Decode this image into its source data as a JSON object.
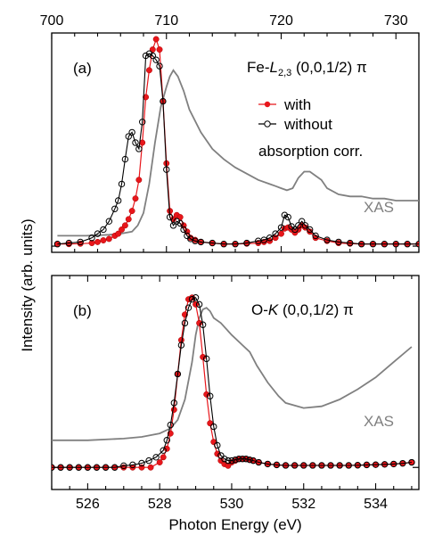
{
  "colors": {
    "with": "#e8161b",
    "without": "#000000",
    "xas": "#808080"
  },
  "ylabel": "Intensity (arb. units)",
  "chart_data": [
    {
      "type": "line",
      "panel_label": "(a)",
      "title_main": "Fe-",
      "title_italic": "L",
      "title_sub": "2,3",
      "title_rest": " (0,0,1/2) π",
      "x_axis_position": "top",
      "xlim": [
        700,
        732
      ],
      "xticks": [
        700,
        710,
        720,
        730
      ],
      "xtick_labels": [
        "700",
        "710",
        "720",
        "730"
      ],
      "ylim": [
        -0.03,
        1.03
      ],
      "grid": false,
      "legend_placement": "top-right",
      "legend": [
        "with",
        "without",
        "absorption corr."
      ],
      "annotation": "XAS",
      "series": [
        {
          "name": "with",
          "x": [
            700.5,
            701.5,
            702.5,
            703.5,
            704.0,
            704.5,
            705.0,
            705.5,
            705.8,
            706.1,
            706.4,
            706.7,
            707.0,
            707.3,
            707.6,
            707.9,
            708.2,
            708.5,
            708.8,
            709.1,
            709.4,
            709.7,
            710.0,
            710.3,
            710.6,
            710.9,
            711.2,
            711.5,
            711.8,
            712.1,
            712.5,
            713.0,
            714.0,
            715.0,
            716.0,
            717.0,
            718.0,
            718.5,
            719.0,
            719.5,
            720.0,
            720.3,
            720.6,
            720.9,
            721.2,
            721.5,
            721.8,
            722.1,
            722.5,
            723.0,
            724.0,
            725.0,
            726.0,
            727.0,
            728.0,
            729.0,
            730.0,
            731.0,
            732.0
          ],
          "values": [
            0.01,
            0.01,
            0.012,
            0.015,
            0.02,
            0.028,
            0.035,
            0.05,
            0.06,
            0.08,
            0.1,
            0.13,
            0.17,
            0.23,
            0.32,
            0.5,
            0.72,
            0.85,
            0.95,
            1.0,
            0.95,
            0.7,
            0.4,
            0.17,
            0.13,
            0.15,
            0.14,
            0.1,
            0.07,
            0.04,
            0.03,
            0.02,
            0.015,
            0.01,
            0.01,
            0.012,
            0.015,
            0.02,
            0.025,
            0.04,
            0.06,
            0.085,
            0.09,
            0.08,
            0.065,
            0.08,
            0.1,
            0.09,
            0.07,
            0.04,
            0.025,
            0.015,
            0.012,
            0.01,
            0.01,
            0.01,
            0.01,
            0.01,
            0.01
          ]
        },
        {
          "name": "without",
          "x": [
            700.5,
            701.5,
            702.5,
            703.5,
            704.0,
            704.5,
            705.0,
            705.5,
            705.8,
            706.1,
            706.4,
            706.7,
            707.0,
            707.3,
            707.6,
            707.9,
            708.2,
            708.5,
            708.8,
            709.1,
            709.4,
            709.7,
            710.0,
            710.3,
            710.6,
            710.9,
            711.2,
            711.5,
            711.8,
            712.1,
            712.5,
            713.0,
            714.0,
            715.0,
            716.0,
            717.0,
            718.0,
            718.5,
            719.0,
            719.5,
            720.0,
            720.3,
            720.6,
            720.9,
            721.2,
            721.5,
            721.8,
            722.1,
            722.5,
            723.0,
            724.0,
            725.0,
            726.0,
            727.0,
            728.0,
            729.0,
            730.0,
            731.0,
            732.0
          ],
          "values": [
            0.01,
            0.015,
            0.02,
            0.04,
            0.06,
            0.08,
            0.12,
            0.18,
            0.22,
            0.3,
            0.42,
            0.53,
            0.55,
            0.5,
            0.47,
            0.6,
            0.92,
            0.93,
            0.92,
            0.9,
            0.87,
            0.7,
            0.37,
            0.14,
            0.1,
            0.12,
            0.11,
            0.08,
            0.05,
            0.035,
            0.025,
            0.02,
            0.015,
            0.01,
            0.01,
            0.015,
            0.025,
            0.03,
            0.04,
            0.06,
            0.09,
            0.15,
            0.14,
            0.095,
            0.08,
            0.1,
            0.12,
            0.1,
            0.08,
            0.05,
            0.03,
            0.02,
            0.015,
            0.01,
            0.01,
            0.01,
            0.01,
            0.01,
            0.01
          ]
        },
        {
          "name": "XAS",
          "x": [
            700.5,
            703,
            705,
            706,
            707,
            707.5,
            708,
            708.5,
            709,
            709.5,
            710,
            710.3,
            710.6,
            711,
            711.5,
            712,
            713,
            714,
            715,
            716,
            717,
            718,
            719,
            719.5,
            720,
            720.5,
            721,
            721.5,
            722,
            722.5,
            723,
            723.5,
            724,
            725,
            726,
            727,
            728,
            729,
            730,
            732
          ],
          "values": [
            0.05,
            0.05,
            0.055,
            0.06,
            0.07,
            0.1,
            0.16,
            0.3,
            0.5,
            0.67,
            0.77,
            0.82,
            0.85,
            0.82,
            0.75,
            0.66,
            0.55,
            0.47,
            0.42,
            0.38,
            0.35,
            0.32,
            0.3,
            0.29,
            0.28,
            0.27,
            0.28,
            0.33,
            0.36,
            0.36,
            0.34,
            0.32,
            0.28,
            0.25,
            0.24,
            0.24,
            0.23,
            0.23,
            0.22,
            0.22
          ]
        }
      ]
    },
    {
      "type": "line",
      "panel_label": "(b)",
      "title_main": "O-",
      "title_italic": "K",
      "title_sub": "",
      "title_rest": " (0,0,1/2) π",
      "x_axis_position": "bottom",
      "xlim": [
        525,
        535.2
      ],
      "xticks": [
        526,
        528,
        530,
        532,
        534
      ],
      "xtick_labels": [
        "526",
        "528",
        "530",
        "532",
        "534"
      ],
      "xlabel": "Photon Energy (eV)",
      "ylim": [
        -0.13,
        1.13
      ],
      "grid": false,
      "annotation": "XAS",
      "series": [
        {
          "name": "with",
          "x": [
            525.0,
            525.25,
            525.5,
            525.75,
            526.0,
            526.25,
            526.5,
            526.75,
            527.0,
            527.25,
            527.5,
            527.75,
            528.0,
            528.1,
            528.2,
            528.3,
            528.4,
            528.5,
            528.6,
            528.7,
            528.8,
            528.9,
            529.0,
            529.1,
            529.2,
            529.3,
            529.4,
            529.5,
            529.6,
            529.7,
            529.8,
            529.9,
            530.0,
            530.1,
            530.2,
            530.3,
            530.4,
            530.5,
            530.6,
            530.75,
            531.0,
            531.25,
            531.5,
            531.75,
            532.0,
            532.25,
            532.5,
            532.75,
            533.0,
            533.25,
            533.5,
            533.75,
            534.0,
            534.25,
            534.5,
            534.75,
            535.0
          ],
          "values": [
            0.0,
            0.0,
            0.0,
            0.0,
            0.0,
            0.0,
            0.0,
            0.0,
            0.0,
            0.0,
            0.0,
            0.0,
            0.03,
            0.06,
            0.11,
            0.2,
            0.34,
            0.55,
            0.75,
            0.9,
            0.99,
            1.0,
            0.96,
            0.85,
            0.65,
            0.43,
            0.26,
            0.15,
            0.08,
            0.04,
            0.02,
            0.01,
            0.03,
            0.04,
            0.05,
            0.05,
            0.05,
            0.045,
            0.04,
            0.03,
            0.02,
            0.015,
            0.012,
            0.012,
            0.012,
            0.012,
            0.012,
            0.012,
            0.012,
            0.012,
            0.013,
            0.015,
            0.016,
            0.018,
            0.02,
            0.024,
            0.03
          ]
        },
        {
          "name": "without",
          "x": [
            525.0,
            525.25,
            525.5,
            525.75,
            526.0,
            526.25,
            526.5,
            526.75,
            527.0,
            527.25,
            527.5,
            527.7,
            527.9,
            528.1,
            528.2,
            528.3,
            528.4,
            528.5,
            528.6,
            528.7,
            528.8,
            528.9,
            529.0,
            529.1,
            529.2,
            529.3,
            529.4,
            529.5,
            529.6,
            529.7,
            529.8,
            529.9,
            530.0,
            530.1,
            530.2,
            530.3,
            530.4,
            530.5,
            530.6,
            530.75,
            531.0,
            531.25,
            531.5,
            531.75,
            532.0,
            532.25,
            532.5,
            532.75,
            533.0,
            533.25,
            533.5,
            533.75,
            534.0,
            534.25,
            534.5,
            534.75,
            535.0
          ],
          "values": [
            0.0,
            0.0,
            0.0,
            0.0,
            0.0,
            0.0,
            0.0,
            0.0,
            0.01,
            0.015,
            0.025,
            0.04,
            0.06,
            0.1,
            0.16,
            0.25,
            0.38,
            0.55,
            0.72,
            0.85,
            0.94,
            0.99,
            1.0,
            0.96,
            0.84,
            0.64,
            0.42,
            0.24,
            0.13,
            0.07,
            0.05,
            0.04,
            0.04,
            0.045,
            0.05,
            0.05,
            0.05,
            0.045,
            0.04,
            0.03,
            0.02,
            0.015,
            0.012,
            0.012,
            0.012,
            0.012,
            0.012,
            0.012,
            0.012,
            0.012,
            0.013,
            0.015,
            0.016,
            0.018,
            0.02,
            0.024,
            0.03
          ]
        },
        {
          "name": "XAS",
          "x": [
            525.0,
            526.0,
            527.0,
            527.5,
            528.0,
            528.3,
            528.5,
            528.7,
            528.9,
            529.0,
            529.1,
            529.2,
            529.3,
            529.4,
            529.5,
            529.7,
            530.0,
            530.3,
            530.5,
            530.7,
            531.0,
            531.3,
            531.5,
            532.0,
            532.5,
            533.0,
            533.5,
            534.0,
            534.5,
            535.0
          ],
          "values": [
            0.16,
            0.16,
            0.17,
            0.18,
            0.2,
            0.23,
            0.28,
            0.4,
            0.62,
            0.78,
            0.88,
            0.93,
            0.94,
            0.92,
            0.88,
            0.85,
            0.78,
            0.72,
            0.68,
            0.6,
            0.5,
            0.42,
            0.38,
            0.35,
            0.36,
            0.4,
            0.46,
            0.53,
            0.62,
            0.71
          ]
        }
      ]
    }
  ]
}
